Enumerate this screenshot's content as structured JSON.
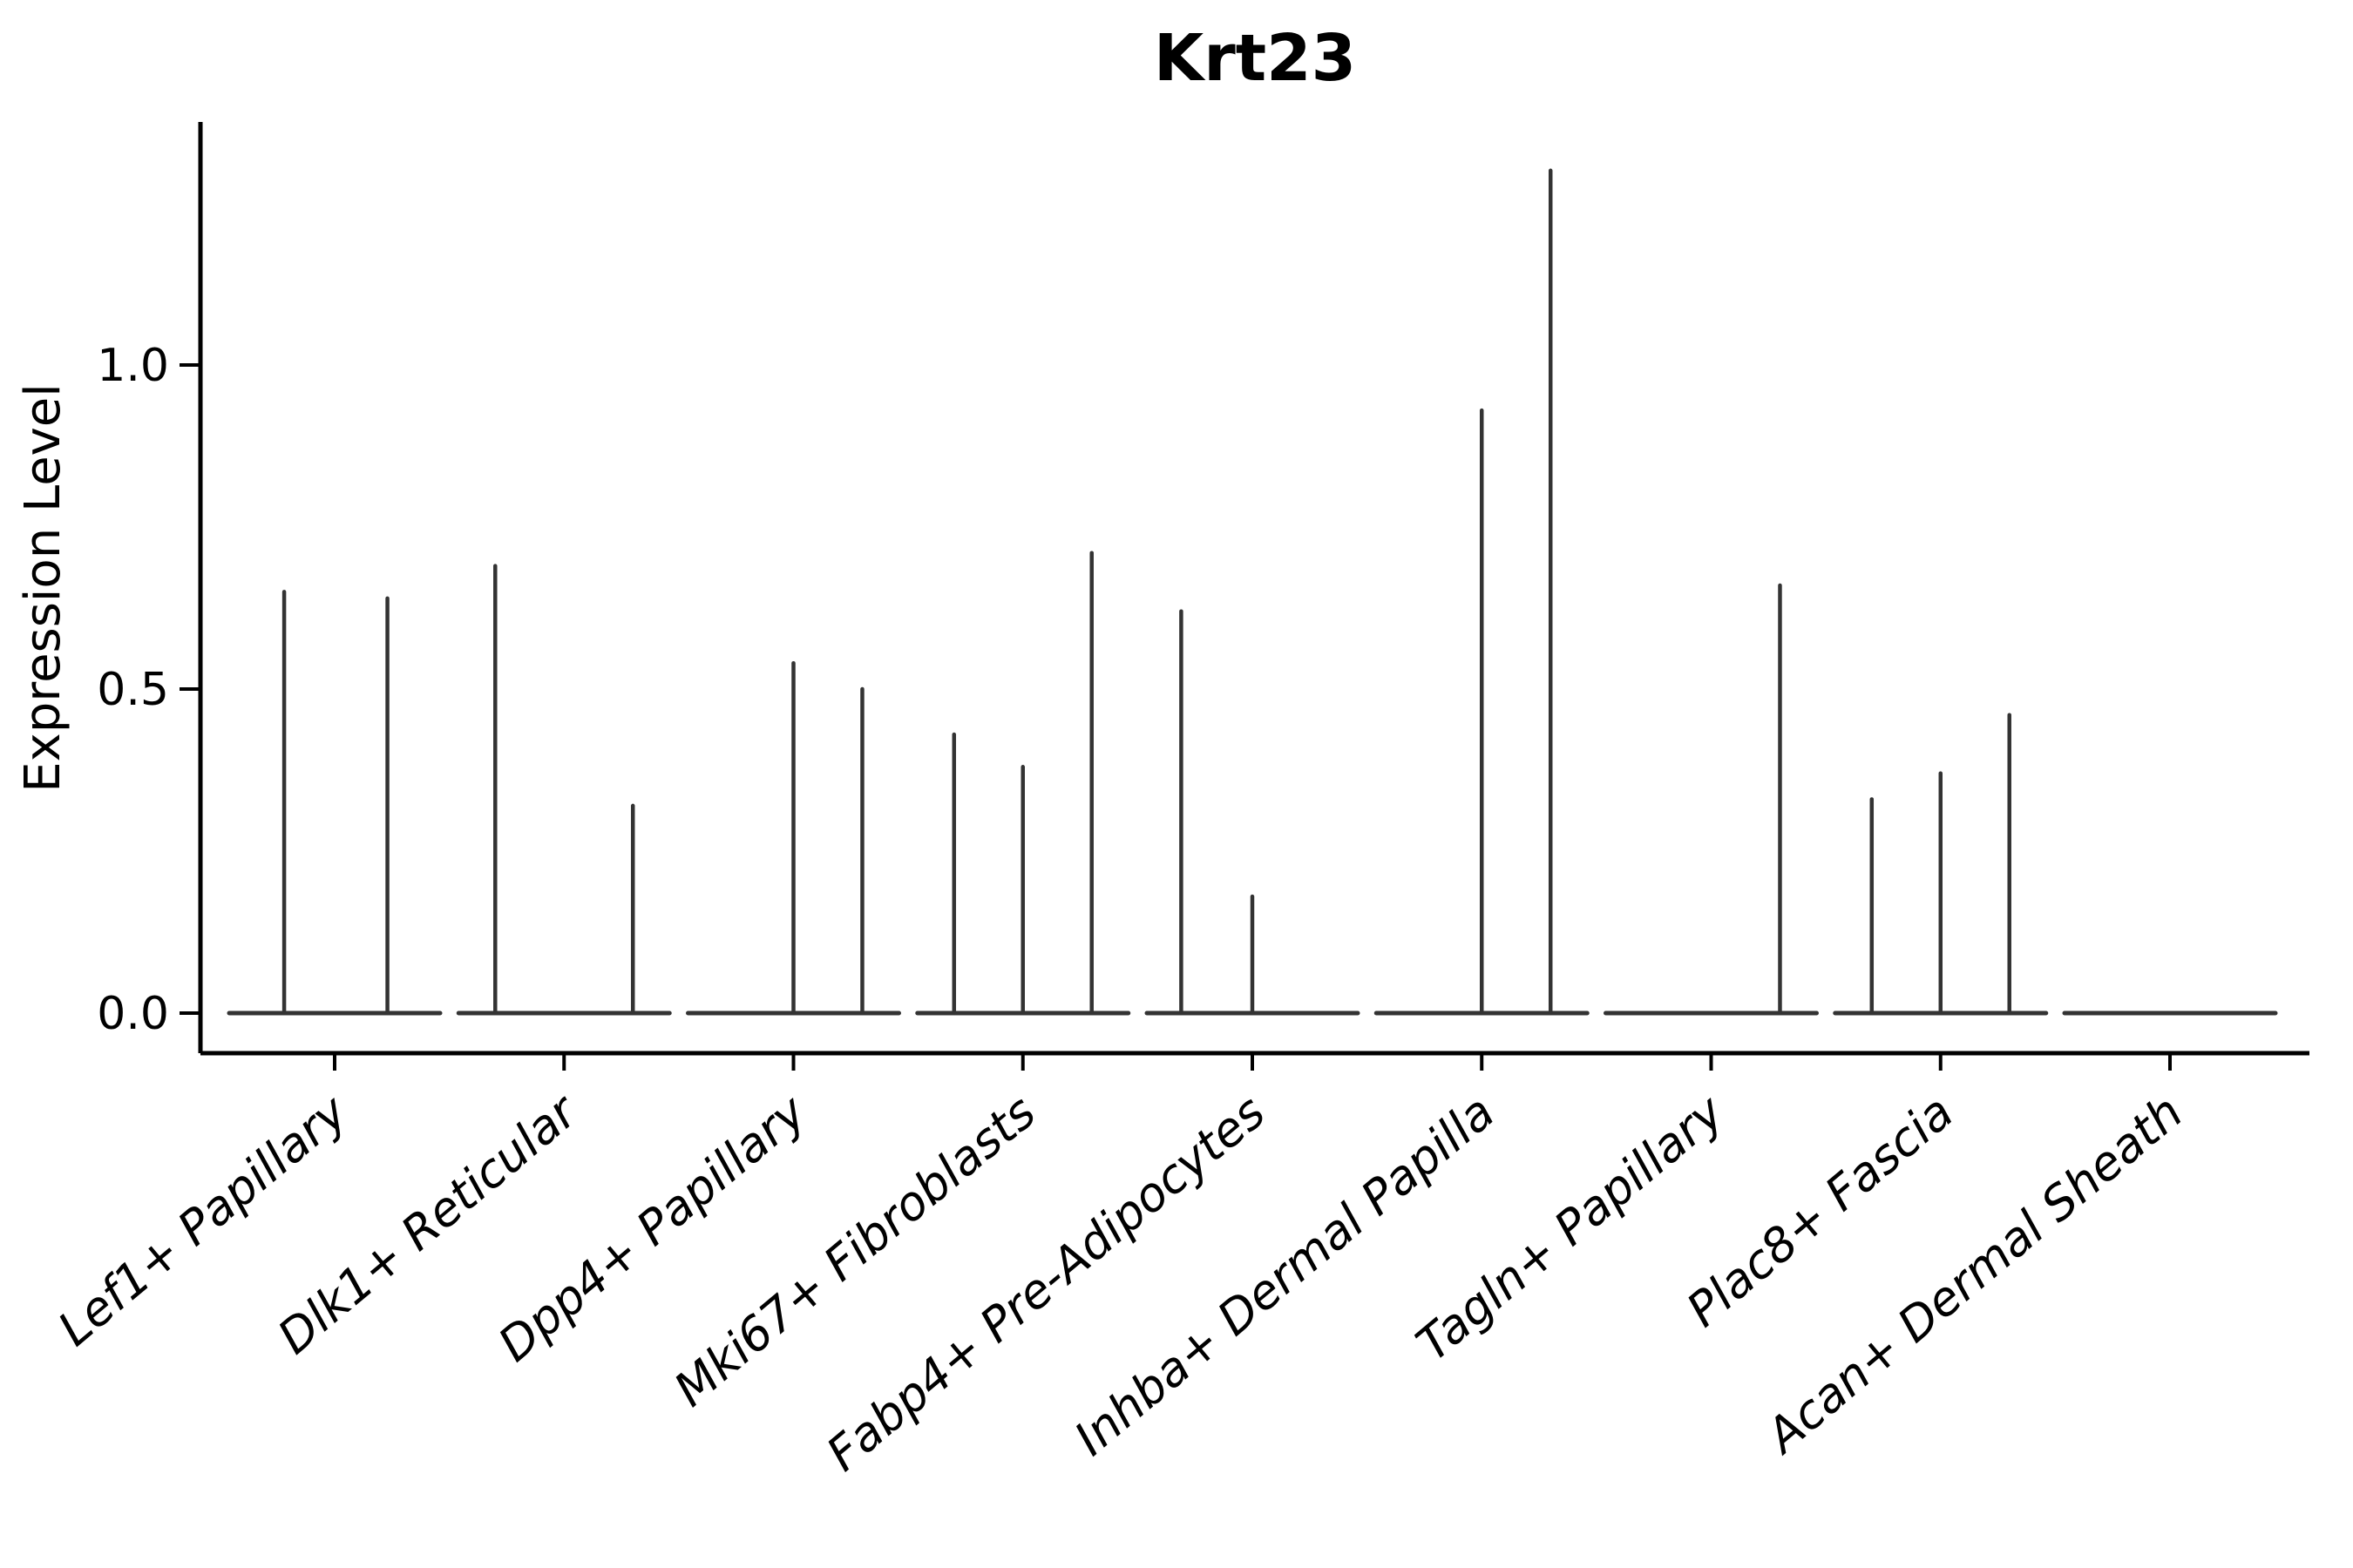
{
  "figure": {
    "title": "Krt23",
    "ylabel": "Expression Level"
  },
  "chart_data": {
    "type": "violin",
    "title": "Krt23",
    "xlabel": "",
    "ylabel": "Expression Level",
    "yticks": [
      0.0,
      0.5,
      1.0
    ],
    "ytick_labels": [
      "0.0",
      "0.5",
      "1.0"
    ],
    "ylim": [
      0.0,
      1.37
    ],
    "grid": false,
    "legend": "none",
    "base_bar_at_zero": true,
    "categories": [
      "Lef1+ Papillary",
      "Dlk1+ Reticular",
      "Dpp4+ Papillary",
      "Mki67+ Fibroblasts",
      "Fabp4+ Pre-Adipocytes",
      "Inhba+ Dermal Papilla",
      "Tagln+ Papillary",
      "Plac8+ Fascia",
      "Acan+ Dermal Sheath"
    ],
    "violins": [
      {
        "category": "Lef1+ Papillary",
        "needles": [
          {
            "x_offset": -0.22,
            "value": 0.65
          },
          {
            "x_offset": 0.23,
            "value": 0.64
          }
        ]
      },
      {
        "category": "Dlk1+ Reticular",
        "needles": [
          {
            "x_offset": -0.3,
            "value": 0.69
          },
          {
            "x_offset": 0.3,
            "value": 0.32
          }
        ]
      },
      {
        "category": "Dpp4+ Papillary",
        "needles": [
          {
            "x_offset": 0.0,
            "value": 0.54
          },
          {
            "x_offset": 0.3,
            "value": 0.5
          }
        ]
      },
      {
        "category": "Mki67+ Fibroblasts",
        "needles": [
          {
            "x_offset": -0.3,
            "value": 0.43
          },
          {
            "x_offset": 0.0,
            "value": 0.38
          },
          {
            "x_offset": 0.3,
            "value": 0.71
          }
        ]
      },
      {
        "category": "Fabp4+ Pre-Adipocytes",
        "needles": [
          {
            "x_offset": -0.31,
            "value": 0.62
          },
          {
            "x_offset": 0.0,
            "value": 0.18
          }
        ]
      },
      {
        "category": "Inhba+ Dermal Papilla",
        "needles": [
          {
            "x_offset": 0.0,
            "value": 0.93
          },
          {
            "x_offset": 0.3,
            "value": 1.3
          }
        ]
      },
      {
        "category": "Tagln+ Papillary",
        "needles": [
          {
            "x_offset": 0.3,
            "value": 0.66
          }
        ]
      },
      {
        "category": "Plac8+ Fascia",
        "needles": [
          {
            "x_offset": -0.3,
            "value": 0.33
          },
          {
            "x_offset": 0.0,
            "value": 0.37
          },
          {
            "x_offset": 0.3,
            "value": 0.46
          }
        ]
      },
      {
        "category": "Acan+ Dermal Sheath",
        "needles": []
      }
    ],
    "style": {
      "violin_color": "#333333",
      "spine_color": "#000000",
      "text_color": "#000000",
      "background": "#ffffff",
      "xlabel_rotation_deg": 40
    }
  }
}
